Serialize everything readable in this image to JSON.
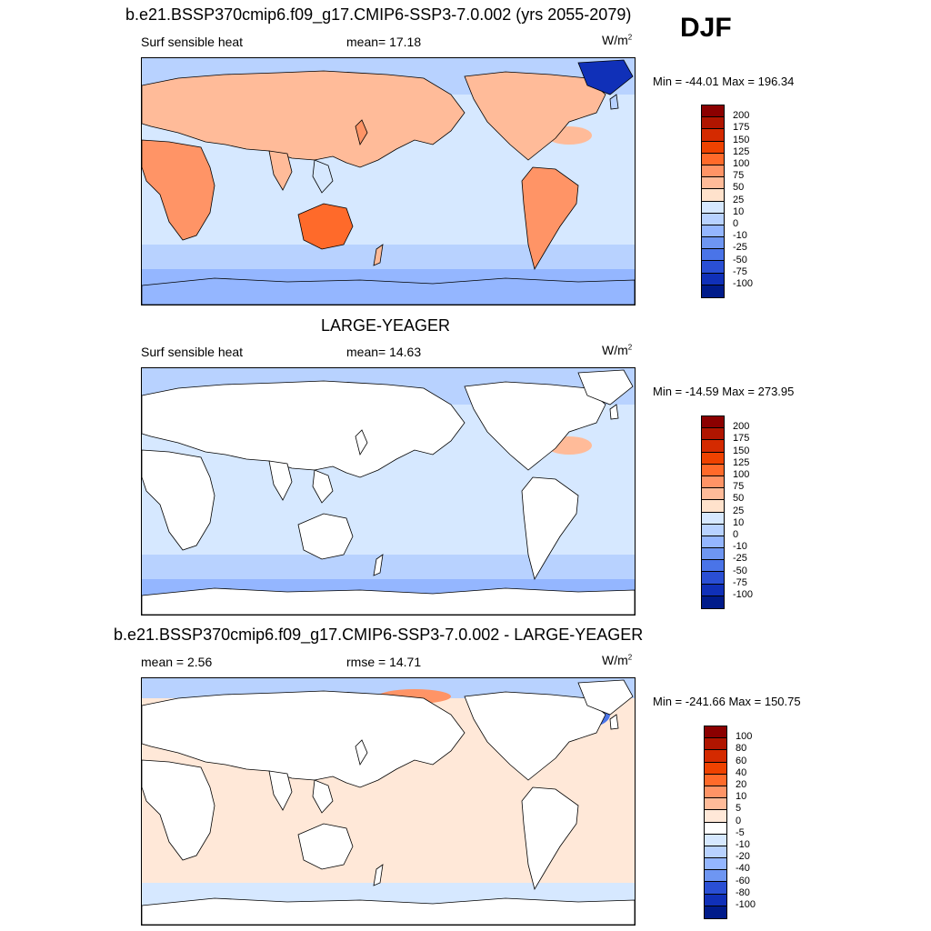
{
  "season": "DJF",
  "panels": [
    {
      "title": "b.e21.BSSP370cmip6.f09_g17.CMIP6-SSP3-7.0.002 (yrs 2055-2079)",
      "left": "Surf sensible heat",
      "center": "mean=  17.18",
      "units_base": "W/m",
      "units_exp": "2",
      "minmax": "Min = -44.01 Max = 196.34",
      "type": "abs",
      "colorbar": {
        "levels": [
          "200",
          "175",
          "150",
          "125",
          "100",
          "75",
          "50",
          "25",
          "10",
          "0",
          "-10",
          "-25",
          "-50",
          "-75",
          "-100"
        ],
        "colors": [
          "#8b0000",
          "#b01500",
          "#d42a00",
          "#ee4200",
          "#ff6a2a",
          "#ff9466",
          "#ffbb99",
          "#ffe2cc",
          "#d6e8ff",
          "#b8d2ff",
          "#94b6ff",
          "#6e96f2",
          "#4a74e8",
          "#2a4fd4",
          "#1030b8",
          "#001b8a"
        ]
      }
    },
    {
      "title": "LARGE-YEAGER",
      "left": "Surf sensible heat",
      "center": "mean=  14.63",
      "units_base": "W/m",
      "units_exp": "2",
      "minmax": "Min = -14.59 Max = 273.95",
      "type": "abs",
      "colorbar": {
        "levels": [
          "200",
          "175",
          "150",
          "125",
          "100",
          "75",
          "50",
          "25",
          "10",
          "0",
          "-10",
          "-25",
          "-50",
          "-75",
          "-100"
        ],
        "colors": [
          "#8b0000",
          "#b01500",
          "#d42a00",
          "#ee4200",
          "#ff6a2a",
          "#ff9466",
          "#ffbb99",
          "#ffe2cc",
          "#d6e8ff",
          "#b8d2ff",
          "#94b6ff",
          "#6e96f2",
          "#4a74e8",
          "#2a4fd4",
          "#1030b8",
          "#001b8a"
        ]
      }
    },
    {
      "title": "b.e21.BSSP370cmip6.f09_g17.CMIP6-SSP3-7.0.002 - LARGE-YEAGER",
      "left": "mean =   2.56",
      "center": "rmse =  14.71",
      "units_base": "W/m",
      "units_exp": "2",
      "minmax": "Min = -241.66 Max = 150.75",
      "type": "diff",
      "colorbar": {
        "levels": [
          "100",
          "80",
          "60",
          "40",
          "20",
          "10",
          "5",
          "0",
          "-5",
          "-10",
          "-20",
          "-40",
          "-60",
          "-80",
          "-100"
        ],
        "colors": [
          "#8b0000",
          "#b01500",
          "#d42a00",
          "#ee4200",
          "#ff6a2a",
          "#ff9466",
          "#ffbb99",
          "#ffe8d8",
          "#ffffff",
          "#d6e8ff",
          "#b8d2ff",
          "#94b6ff",
          "#6e96f2",
          "#2a4fd4",
          "#1030b8",
          "#001b8a"
        ]
      }
    }
  ]
}
